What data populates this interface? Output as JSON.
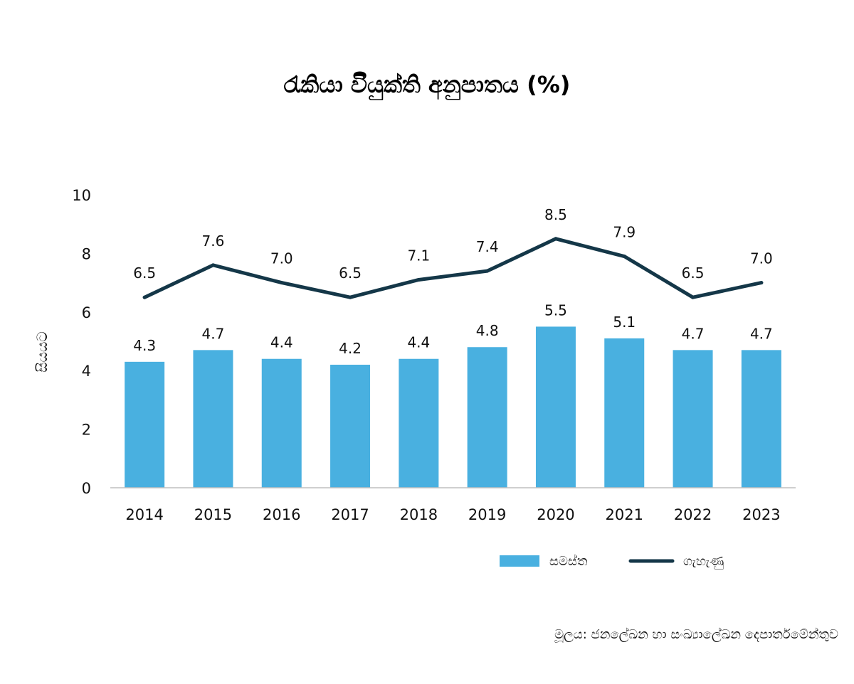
{
  "chart_data": {
    "type": "bar",
    "title": "රැකියා විියුක්ති අනුපාතය (%)",
    "ylabel": "සියයට",
    "xlabel": "",
    "ylim": [
      0,
      10
    ],
    "yticks": [
      0,
      2,
      4,
      6,
      8,
      10
    ],
    "grid": false,
    "legend_position": "bottom-right",
    "categories": [
      "2014",
      "2015",
      "2016",
      "2017",
      "2018",
      "2019",
      "2020",
      "2021",
      "2022",
      "2023"
    ],
    "series": [
      {
        "name": "සමස්ත",
        "type": "bar",
        "color": "#49b0e0",
        "values": [
          4.3,
          4.7,
          4.4,
          4.2,
          4.4,
          4.8,
          5.5,
          5.1,
          4.7,
          4.7
        ],
        "labels": [
          "4.3",
          "4.7",
          "4.4",
          "4.2",
          "4.4",
          "4.8",
          "5.5",
          "5.1",
          "4.7",
          "4.7"
        ]
      },
      {
        "name": "ගැහැණු",
        "type": "line",
        "color": "#143748",
        "values": [
          6.5,
          7.6,
          7.0,
          6.5,
          7.1,
          7.4,
          8.5,
          7.9,
          6.5,
          7.0
        ],
        "labels": [
          "6.5",
          "7.6",
          "7.0",
          "6.5",
          "7.1",
          "7.4",
          "8.5",
          "7.9",
          "6.5",
          "7.0"
        ]
      }
    ]
  },
  "source": "මූලය: ජනලේඛන හා සංඛ්‍යාලේඛන දෙපාර්තමේන්තුව"
}
